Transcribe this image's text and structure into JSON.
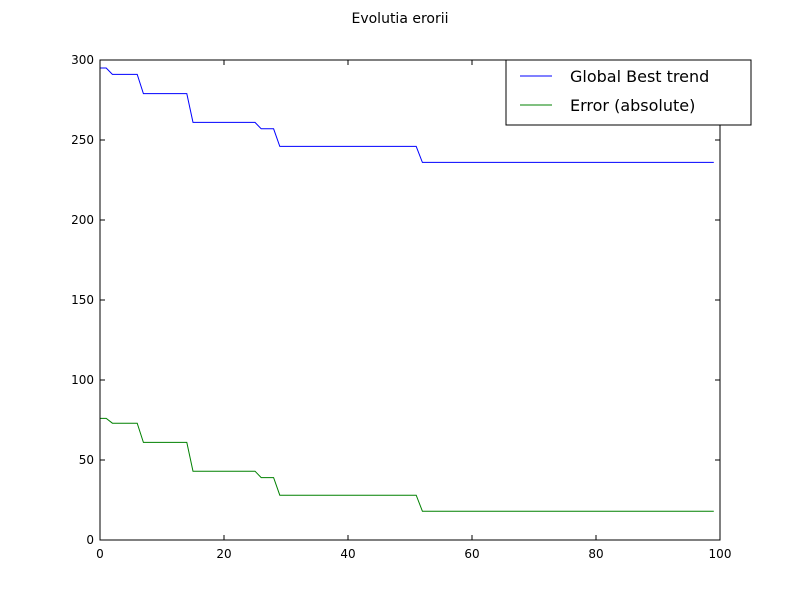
{
  "chart_data": {
    "type": "line",
    "title": "Evolutia erorii",
    "xlabel": "",
    "ylabel": "",
    "xlim": [
      0,
      100
    ],
    "ylim": [
      0,
      300
    ],
    "xticks": [
      0,
      20,
      40,
      60,
      80,
      100
    ],
    "yticks": [
      0,
      50,
      100,
      150,
      200,
      250,
      300
    ],
    "grid": false,
    "legend_position": "top-right",
    "series": [
      {
        "name": "Global Best trend",
        "color": "#0000ff",
        "x": [
          0,
          1,
          2,
          6,
          7,
          14,
          15,
          25,
          26,
          28,
          29,
          51,
          52,
          99
        ],
        "y": [
          295,
          295,
          291,
          291,
          279,
          279,
          261,
          261,
          257,
          257,
          246,
          246,
          236,
          236
        ]
      },
      {
        "name": "Error (absolute)",
        "color": "#008000",
        "x": [
          0,
          1,
          2,
          6,
          7,
          14,
          15,
          25,
          26,
          28,
          29,
          51,
          52,
          99
        ],
        "y": [
          76,
          76,
          73,
          73,
          61,
          61,
          43,
          43,
          39,
          39,
          28,
          28,
          18,
          18
        ]
      }
    ]
  }
}
